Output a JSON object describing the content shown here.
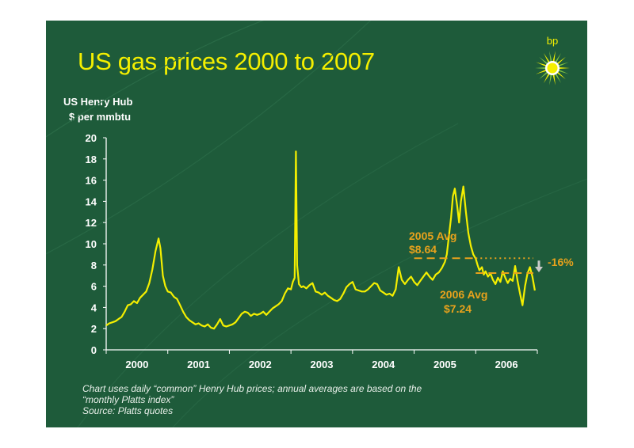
{
  "slide": {
    "title": "US gas prices 2000 to 2007",
    "brand": "bp",
    "footnote": {
      "line1": "Chart uses daily “common” Henry Hub prices; annual averages are based on the",
      "line2": "“monthly Platts index”",
      "source": "Source:  Platts quotes"
    }
  },
  "colors": {
    "background": "#1e5b3a",
    "series": "#f4ef00",
    "annotation": "#e8a21c",
    "text": "#ffffff"
  },
  "chart_data": {
    "type": "line",
    "title": "US gas prices 2000 to 2007",
    "ylabel_line1": "US Henry Hub",
    "ylabel_line2": "$ per mmbtu",
    "ylim": [
      0,
      20
    ],
    "yticks": [
      "0",
      "2",
      "4",
      "6",
      "8",
      "10",
      "12",
      "14",
      "16",
      "18",
      "20"
    ],
    "xlim": [
      2000.0,
      2007.0
    ],
    "xticks": [
      {
        "label": "2000",
        "x": 2000.5
      },
      {
        "label": "2001",
        "x": 2001.5
      },
      {
        "label": "2002",
        "x": 2002.5
      },
      {
        "label": "2003",
        "x": 2003.5
      },
      {
        "label": "2004",
        "x": 2004.5
      },
      {
        "label": "2005",
        "x": 2005.5
      },
      {
        "label": "2006",
        "x": 2006.5
      }
    ],
    "grid": false,
    "series": [
      {
        "values": [
          [
            2000.0,
            2.3
          ],
          [
            2000.05,
            2.5
          ],
          [
            2000.1,
            2.6
          ],
          [
            2000.15,
            2.7
          ],
          [
            2000.2,
            2.9
          ],
          [
            2000.25,
            3.1
          ],
          [
            2000.3,
            3.6
          ],
          [
            2000.35,
            4.2
          ],
          [
            2000.4,
            4.3
          ],
          [
            2000.45,
            4.6
          ],
          [
            2000.5,
            4.4
          ],
          [
            2000.55,
            4.9
          ],
          [
            2000.6,
            5.2
          ],
          [
            2000.65,
            5.5
          ],
          [
            2000.7,
            6.3
          ],
          [
            2000.75,
            7.6
          ],
          [
            2000.8,
            9.3
          ],
          [
            2000.85,
            10.5
          ],
          [
            2000.88,
            9.6
          ],
          [
            2000.92,
            7.0
          ],
          [
            2000.96,
            6.0
          ],
          [
            2001.0,
            5.5
          ],
          [
            2001.05,
            5.4
          ],
          [
            2001.1,
            5.0
          ],
          [
            2001.15,
            4.8
          ],
          [
            2001.2,
            4.2
          ],
          [
            2001.25,
            3.6
          ],
          [
            2001.3,
            3.1
          ],
          [
            2001.35,
            2.8
          ],
          [
            2001.4,
            2.6
          ],
          [
            2001.45,
            2.4
          ],
          [
            2001.5,
            2.5
          ],
          [
            2001.55,
            2.3
          ],
          [
            2001.6,
            2.2
          ],
          [
            2001.65,
            2.4
          ],
          [
            2001.7,
            2.1
          ],
          [
            2001.75,
            2.0
          ],
          [
            2001.8,
            2.4
          ],
          [
            2001.85,
            2.9
          ],
          [
            2001.9,
            2.3
          ],
          [
            2001.95,
            2.2
          ],
          [
            2002.0,
            2.3
          ],
          [
            2002.05,
            2.4
          ],
          [
            2002.1,
            2.6
          ],
          [
            2002.15,
            3.0
          ],
          [
            2002.2,
            3.4
          ],
          [
            2002.25,
            3.6
          ],
          [
            2002.3,
            3.5
          ],
          [
            2002.35,
            3.2
          ],
          [
            2002.4,
            3.4
          ],
          [
            2002.45,
            3.3
          ],
          [
            2002.5,
            3.4
          ],
          [
            2002.55,
            3.6
          ],
          [
            2002.6,
            3.3
          ],
          [
            2002.65,
            3.6
          ],
          [
            2002.7,
            3.9
          ],
          [
            2002.75,
            4.1
          ],
          [
            2002.8,
            4.3
          ],
          [
            2002.85,
            4.6
          ],
          [
            2002.9,
            5.3
          ],
          [
            2002.95,
            5.8
          ],
          [
            2003.0,
            5.7
          ],
          [
            2003.03,
            6.4
          ],
          [
            2003.06,
            6.8
          ],
          [
            2003.08,
            18.7
          ],
          [
            2003.1,
            8.0
          ],
          [
            2003.13,
            6.2
          ],
          [
            2003.17,
            5.9
          ],
          [
            2003.2,
            6.0
          ],
          [
            2003.25,
            5.8
          ],
          [
            2003.3,
            6.1
          ],
          [
            2003.35,
            6.3
          ],
          [
            2003.4,
            5.5
          ],
          [
            2003.45,
            5.4
          ],
          [
            2003.5,
            5.2
          ],
          [
            2003.55,
            5.4
          ],
          [
            2003.6,
            5.1
          ],
          [
            2003.65,
            4.9
          ],
          [
            2003.7,
            4.7
          ],
          [
            2003.75,
            4.6
          ],
          [
            2003.8,
            4.8
          ],
          [
            2003.85,
            5.3
          ],
          [
            2003.9,
            5.9
          ],
          [
            2003.95,
            6.2
          ],
          [
            2004.0,
            6.4
          ],
          [
            2004.05,
            5.7
          ],
          [
            2004.1,
            5.6
          ],
          [
            2004.15,
            5.5
          ],
          [
            2004.2,
            5.5
          ],
          [
            2004.25,
            5.7
          ],
          [
            2004.3,
            6.0
          ],
          [
            2004.35,
            6.3
          ],
          [
            2004.4,
            6.2
          ],
          [
            2004.45,
            5.6
          ],
          [
            2004.5,
            5.4
          ],
          [
            2004.55,
            5.2
          ],
          [
            2004.6,
            5.3
          ],
          [
            2004.65,
            5.1
          ],
          [
            2004.7,
            5.7
          ],
          [
            2004.75,
            7.8
          ],
          [
            2004.8,
            6.6
          ],
          [
            2004.85,
            6.2
          ],
          [
            2004.9,
            6.6
          ],
          [
            2004.95,
            6.9
          ],
          [
            2005.0,
            6.4
          ],
          [
            2005.05,
            6.1
          ],
          [
            2005.1,
            6.5
          ],
          [
            2005.15,
            6.9
          ],
          [
            2005.2,
            7.3
          ],
          [
            2005.25,
            6.9
          ],
          [
            2005.3,
            6.6
          ],
          [
            2005.35,
            7.1
          ],
          [
            2005.4,
            7.3
          ],
          [
            2005.45,
            7.7
          ],
          [
            2005.5,
            8.3
          ],
          [
            2005.53,
            9.0
          ],
          [
            2005.56,
            10.5
          ],
          [
            2005.6,
            12.5
          ],
          [
            2005.63,
            14.5
          ],
          [
            2005.66,
            15.2
          ],
          [
            2005.7,
            13.5
          ],
          [
            2005.73,
            12.0
          ],
          [
            2005.76,
            14.0
          ],
          [
            2005.8,
            15.4
          ],
          [
            2005.84,
            13.0
          ],
          [
            2005.88,
            11.0
          ],
          [
            2005.92,
            9.8
          ],
          [
            2005.96,
            9.0
          ],
          [
            2006.0,
            8.6
          ],
          [
            2006.03,
            8.0
          ],
          [
            2006.06,
            7.5
          ],
          [
            2006.1,
            7.8
          ],
          [
            2006.13,
            7.1
          ],
          [
            2006.16,
            7.4
          ],
          [
            2006.2,
            6.9
          ],
          [
            2006.24,
            7.2
          ],
          [
            2006.28,
            6.6
          ],
          [
            2006.32,
            6.2
          ],
          [
            2006.36,
            6.8
          ],
          [
            2006.4,
            6.4
          ],
          [
            2006.44,
            7.4
          ],
          [
            2006.48,
            6.8
          ],
          [
            2006.52,
            6.3
          ],
          [
            2006.56,
            6.7
          ],
          [
            2006.6,
            6.5
          ],
          [
            2006.64,
            7.9
          ],
          [
            2006.68,
            6.5
          ],
          [
            2006.72,
            5.3
          ],
          [
            2006.76,
            4.2
          ],
          [
            2006.8,
            6.0
          ],
          [
            2006.84,
            7.2
          ],
          [
            2006.88,
            7.8
          ],
          [
            2006.92,
            6.9
          ],
          [
            2006.96,
            5.6
          ]
        ]
      }
    ],
    "annotations": [
      {
        "kind": "avg",
        "line1": "2005 Avg",
        "line2": "$8.64",
        "value": 8.64,
        "from": 2005.0,
        "to": 2006.0
      },
      {
        "kind": "avg",
        "line1": "2006 Avg",
        "line2": "$7.24",
        "value": 7.24,
        "from": 2006.0,
        "to": 2007.0
      },
      {
        "kind": "change",
        "text": "-16%"
      }
    ]
  }
}
